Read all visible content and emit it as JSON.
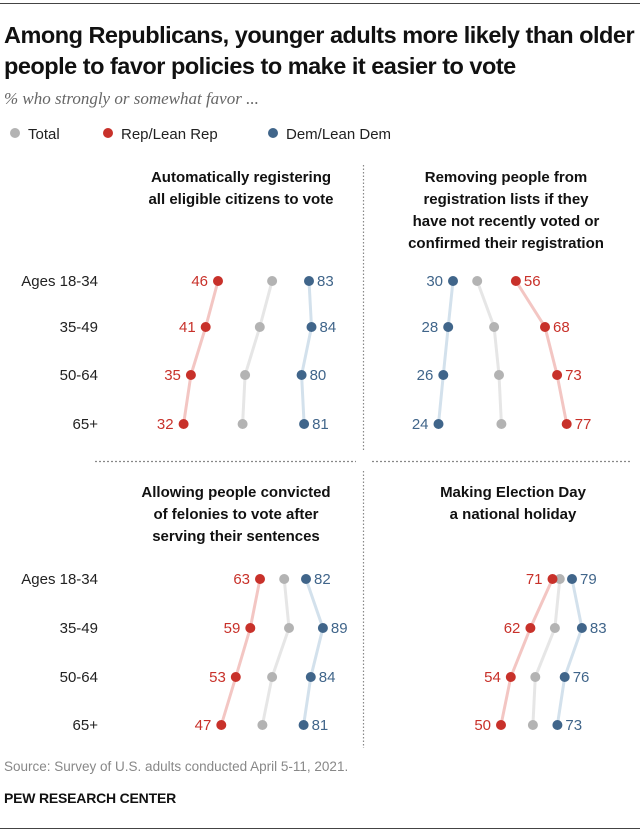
{
  "header": {
    "title": "Among Republicans, younger adults more likely than older people to favor policies to make it easier to vote",
    "subtitle": "% who strongly or somewhat favor ..."
  },
  "legend": [
    {
      "label": "Total",
      "color": "#b3b3b3"
    },
    {
      "label": "Rep/Lean Rep",
      "color": "#c8312a"
    },
    {
      "label": "Dem/Lean Dem",
      "color": "#40658a"
    }
  ],
  "footer": {
    "source": "Source: Survey of U.S. adults conducted April 5-11, 2021.",
    "brand": "PEW RESEARCH CENTER"
  },
  "colors": {
    "rep": "#c8312a",
    "rep_line": "#f3c6c3",
    "dem": "#40658a",
    "dem_line": "#d3e1ec",
    "total": "#b3b3b3",
    "total_line": "#e6e6e6",
    "divider": "#888888"
  },
  "chart_data": {
    "type": "dot-plot (connected)",
    "title": "Among Republicans, younger adults more likely than older people to favor policies to make it easier to vote",
    "subtitle": "% who strongly or somewhat favor ...",
    "categories": [
      "Ages 18-34",
      "35-49",
      "50-64",
      "65+"
    ],
    "series_names": [
      "Total",
      "Rep/Lean Rep",
      "Dem/Lean Dem"
    ],
    "panels": [
      {
        "title_lines": [
          "Automatically registering",
          "all eligible citizens to vote"
        ],
        "rep": [
          46,
          41,
          35,
          32
        ],
        "dem": [
          83,
          84,
          80,
          81
        ],
        "total_estimated": [
          68,
          63,
          57,
          56
        ],
        "label_side": {
          "rep": "left",
          "dem": "right"
        }
      },
      {
        "title_lines": [
          "Removing people from",
          "registration lists if they",
          "have not recently voted or",
          "confirmed their registration"
        ],
        "rep": [
          56,
          68,
          73,
          77
        ],
        "dem": [
          30,
          28,
          26,
          24
        ],
        "total_estimated": [
          40,
          47,
          49,
          50
        ],
        "label_side": {
          "rep": "right",
          "dem": "left"
        }
      },
      {
        "title_lines": [
          "Allowing people convicted",
          "of felonies to vote after",
          "serving their sentences"
        ],
        "rep": [
          63,
          59,
          53,
          47
        ],
        "dem": [
          82,
          89,
          84,
          81
        ],
        "total_estimated": [
          73,
          75,
          68,
          64
        ],
        "label_side": {
          "rep": "left",
          "dem": "right"
        }
      },
      {
        "title_lines": [
          "Making Election Day",
          "a national holiday"
        ],
        "rep": [
          71,
          62,
          54,
          50
        ],
        "dem": [
          79,
          83,
          76,
          73
        ],
        "total_estimated": [
          74,
          72,
          64,
          63
        ],
        "label_side": {
          "rep": "left",
          "dem": "right"
        }
      }
    ],
    "grid": false,
    "legend_position": "top-left"
  }
}
